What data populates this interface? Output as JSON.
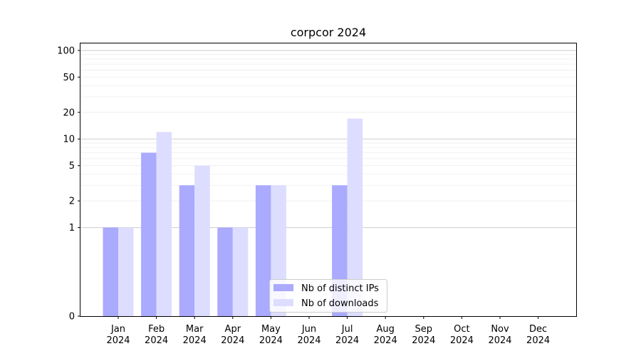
{
  "chart_data": {
    "type": "bar",
    "title": "corpcor 2024",
    "xlabel": "",
    "ylabel": "",
    "y_scale": "symlog",
    "ylim": [
      0,
      120
    ],
    "yticks": [
      0,
      1,
      2,
      5,
      10,
      20,
      50,
      100
    ],
    "ytick_labels": [
      "0",
      "1",
      "2",
      "5",
      "10",
      "20",
      "50",
      "100"
    ],
    "categories": [
      [
        "Jan",
        "2024"
      ],
      [
        "Feb",
        "2024"
      ],
      [
        "Mar",
        "2024"
      ],
      [
        "Apr",
        "2024"
      ],
      [
        "May",
        "2024"
      ],
      [
        "Jun",
        "2024"
      ],
      [
        "Jul",
        "2024"
      ],
      [
        "Aug",
        "2024"
      ],
      [
        "Sep",
        "2024"
      ],
      [
        "Oct",
        "2024"
      ],
      [
        "Nov",
        "2024"
      ],
      [
        "Dec",
        "2024"
      ]
    ],
    "series": [
      {
        "name": "Nb of distinct IPs",
        "color": "#aaaaff",
        "values": [
          1,
          7,
          3,
          1,
          3,
          0,
          3,
          0,
          0,
          0,
          0,
          0
        ]
      },
      {
        "name": "Nb of downloads",
        "color": "#ddddff",
        "values": [
          1,
          12,
          5,
          1,
          3,
          0,
          17,
          0,
          0,
          0,
          0,
          0
        ]
      }
    ],
    "grid": true,
    "legend_position": "lower-center"
  }
}
